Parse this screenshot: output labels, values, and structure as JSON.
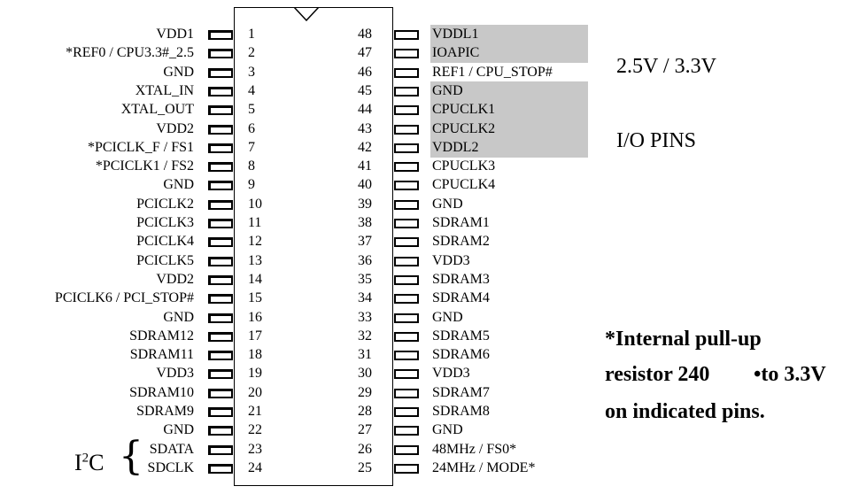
{
  "left_pins": [
    {
      "num": "1",
      "label": "VDD1"
    },
    {
      "num": "2",
      "label": "*REF0 / CPU3.3#_2.5"
    },
    {
      "num": "3",
      "label": "GND"
    },
    {
      "num": "4",
      "label": "XTAL_IN"
    },
    {
      "num": "5",
      "label": "XTAL_OUT"
    },
    {
      "num": "6",
      "label": "VDD2"
    },
    {
      "num": "7",
      "label": "*PCICLK_F / FS1"
    },
    {
      "num": "8",
      "label": "*PCICLK1 / FS2"
    },
    {
      "num": "9",
      "label": "GND"
    },
    {
      "num": "10",
      "label": "PCICLK2"
    },
    {
      "num": "11",
      "label": "PCICLK3"
    },
    {
      "num": "12",
      "label": "PCICLK4"
    },
    {
      "num": "13",
      "label": "PCICLK5"
    },
    {
      "num": "14",
      "label": "VDD2"
    },
    {
      "num": "15",
      "label": "PCICLK6 / PCI_STOP#"
    },
    {
      "num": "16",
      "label": "GND"
    },
    {
      "num": "17",
      "label": "SDRAM12"
    },
    {
      "num": "18",
      "label": "SDRAM11"
    },
    {
      "num": "19",
      "label": "VDD3"
    },
    {
      "num": "20",
      "label": "SDRAM10"
    },
    {
      "num": "21",
      "label": "SDRAM9"
    },
    {
      "num": "22",
      "label": "GND"
    },
    {
      "num": "23",
      "label": "SDATA"
    },
    {
      "num": "24",
      "label": "SDCLK"
    }
  ],
  "right_pins": [
    {
      "num": "48",
      "label": "VDDL1",
      "highlight": true
    },
    {
      "num": "47",
      "label": "IOAPIC",
      "highlight": true
    },
    {
      "num": "46",
      "label": "REF1 / CPU_STOP#",
      "highlight": false
    },
    {
      "num": "45",
      "label": "GND",
      "highlight": true
    },
    {
      "num": "44",
      "label": "CPUCLK1",
      "highlight": true
    },
    {
      "num": "43",
      "label": "CPUCLK2",
      "highlight": true
    },
    {
      "num": "42",
      "label": "VDDL2",
      "highlight": true
    },
    {
      "num": "41",
      "label": "CPUCLK3",
      "highlight": false
    },
    {
      "num": "40",
      "label": "CPUCLK4",
      "highlight": false
    },
    {
      "num": "39",
      "label": "GND",
      "highlight": false
    },
    {
      "num": "38",
      "label": "SDRAM1",
      "highlight": false
    },
    {
      "num": "37",
      "label": "SDRAM2",
      "highlight": false
    },
    {
      "num": "36",
      "label": "VDD3",
      "highlight": false
    },
    {
      "num": "35",
      "label": "SDRAM3",
      "highlight": false
    },
    {
      "num": "34",
      "label": "SDRAM4",
      "highlight": false
    },
    {
      "num": "33",
      "label": "GND",
      "highlight": false
    },
    {
      "num": "32",
      "label": "SDRAM5",
      "highlight": false
    },
    {
      "num": "31",
      "label": "SDRAM6",
      "highlight": false
    },
    {
      "num": "30",
      "label": "VDD3",
      "highlight": false
    },
    {
      "num": "29",
      "label": "SDRAM7",
      "highlight": false
    },
    {
      "num": "28",
      "label": "SDRAM8",
      "highlight": false
    },
    {
      "num": "27",
      "label": "GND",
      "highlight": false
    },
    {
      "num": "26",
      "label": "48MHz / FS0*",
      "highlight": false
    },
    {
      "num": "25",
      "label": "24MHz / MODE*",
      "highlight": false
    }
  ],
  "legend": {
    "voltage": "2.5V / 3.3V",
    "io_pins": "I/O PINS"
  },
  "pullup_note": {
    "line1": "*Internal pull-up",
    "line2a": "resistor 240",
    "line2b": "•to 3.3V",
    "line3": "on indicated pins."
  },
  "i2c": {
    "label_main": "I",
    "label_sup": "2",
    "label_tail": "C",
    "brace": "{"
  },
  "colors": {
    "highlight": "#c8c8c8"
  }
}
